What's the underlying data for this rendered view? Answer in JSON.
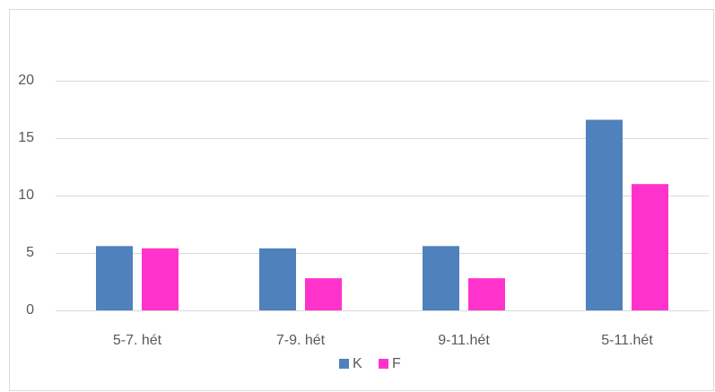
{
  "chart_data": {
    "type": "bar",
    "categories": [
      "5-7. hét",
      "7-9. hét",
      "9-11.hét",
      "5-11.hét"
    ],
    "series": [
      {
        "name": "K",
        "color": "#4f81bd",
        "values": [
          5.6,
          5.4,
          5.6,
          16.6
        ]
      },
      {
        "name": "F",
        "color": "#ff33cc",
        "values": [
          5.4,
          2.8,
          2.8,
          11.0
        ]
      }
    ],
    "ylim": [
      0,
      20
    ],
    "yticks": [
      0,
      5,
      10,
      15,
      20
    ],
    "grid": true,
    "legend": "bottom"
  }
}
